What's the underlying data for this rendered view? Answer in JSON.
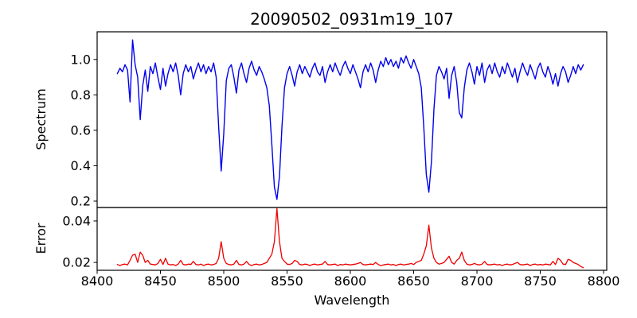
{
  "chart_data": {
    "type": "line",
    "title": "20090502_0931m19_107",
    "xlabel": "Wavelength",
    "xlim": [
      8400,
      8802.5
    ],
    "xticks": [
      "8400",
      "8450",
      "8500",
      "8550",
      "8600",
      "8650",
      "8700",
      "8750",
      "8800"
    ],
    "grid": false,
    "legend": "none",
    "panels": [
      {
        "name": "spectrum",
        "ylabel": "Spectrum",
        "ylim": [
          0.164,
          1.156
        ],
        "yticks": [
          "0.2",
          "0.4",
          "0.6",
          "0.8",
          "1.0"
        ],
        "series": {
          "name": "spectrum",
          "color": "#0000ee"
        }
      },
      {
        "name": "error",
        "ylabel": "Error",
        "ylim": [
          0.0162,
          0.0465
        ],
        "yticks": [
          "0.02",
          "0.04"
        ],
        "series": {
          "name": "error",
          "color": "#ee0000"
        }
      }
    ],
    "x": [
      8416,
      8418,
      8420,
      8422,
      8424,
      8426,
      8428,
      8430,
      8432,
      8434,
      8436,
      8438,
      8440,
      8442,
      8444,
      8446,
      8448,
      8450,
      8452,
      8454,
      8456,
      8458,
      8460,
      8462,
      8464,
      8466,
      8468,
      8470,
      8472,
      8474,
      8476,
      8478,
      8480,
      8482,
      8484,
      8486,
      8488,
      8490,
      8492,
      8494,
      8496,
      8498,
      8500,
      8502,
      8504,
      8506,
      8508,
      8510,
      8512,
      8514,
      8516,
      8518,
      8520,
      8522,
      8524,
      8526,
      8528,
      8530,
      8532,
      8534,
      8536,
      8538,
      8540,
      8542,
      8544,
      8546,
      8548,
      8550,
      8552,
      8554,
      8556,
      8558,
      8560,
      8562,
      8564,
      8566,
      8568,
      8570,
      8572,
      8574,
      8576,
      8578,
      8580,
      8582,
      8584,
      8586,
      8588,
      8590,
      8592,
      8594,
      8596,
      8598,
      8600,
      8602,
      8604,
      8606,
      8608,
      8610,
      8612,
      8614,
      8616,
      8618,
      8620,
      8622,
      8624,
      8626,
      8628,
      8630,
      8632,
      8634,
      8636,
      8638,
      8640,
      8642,
      8644,
      8646,
      8648,
      8650,
      8652,
      8654,
      8656,
      8658,
      8660,
      8662,
      8664,
      8666,
      8668,
      8670,
      8672,
      8674,
      8676,
      8678,
      8680,
      8682,
      8684,
      8686,
      8688,
      8690,
      8692,
      8694,
      8696,
      8698,
      8700,
      8702,
      8704,
      8706,
      8708,
      8710,
      8712,
      8714,
      8716,
      8718,
      8720,
      8722,
      8724,
      8726,
      8728,
      8730,
      8732,
      8734,
      8736,
      8738,
      8740,
      8742,
      8744,
      8746,
      8748,
      8750,
      8752,
      8754,
      8756,
      8758,
      8760,
      8762,
      8764,
      8766,
      8768,
      8770,
      8772,
      8774,
      8776,
      8778,
      8780,
      8782,
      8784
    ],
    "spectrum": [
      0.92,
      0.95,
      0.93,
      0.97,
      0.94,
      0.76,
      1.11,
      0.97,
      0.9,
      0.66,
      0.85,
      0.94,
      0.82,
      0.96,
      0.92,
      0.98,
      0.9,
      0.83,
      0.95,
      0.85,
      0.92,
      0.97,
      0.93,
      0.98,
      0.91,
      0.8,
      0.92,
      0.97,
      0.93,
      0.96,
      0.89,
      0.94,
      0.98,
      0.93,
      0.97,
      0.92,
      0.96,
      0.93,
      0.98,
      0.9,
      0.62,
      0.37,
      0.58,
      0.88,
      0.95,
      0.97,
      0.9,
      0.81,
      0.94,
      0.98,
      0.92,
      0.87,
      0.95,
      0.99,
      0.94,
      0.91,
      0.96,
      0.93,
      0.89,
      0.84,
      0.74,
      0.52,
      0.28,
      0.21,
      0.34,
      0.62,
      0.84,
      0.92,
      0.96,
      0.91,
      0.85,
      0.93,
      0.97,
      0.92,
      0.96,
      0.93,
      0.9,
      0.95,
      0.98,
      0.93,
      0.91,
      0.96,
      0.87,
      0.93,
      0.97,
      0.93,
      0.98,
      0.94,
      0.91,
      0.96,
      0.99,
      0.95,
      0.92,
      0.97,
      0.93,
      0.89,
      0.84,
      0.93,
      0.97,
      0.93,
      0.98,
      0.94,
      0.87,
      0.94,
      0.99,
      0.96,
      1.01,
      0.97,
      1.0,
      0.96,
      0.99,
      0.95,
      1.01,
      0.98,
      1.02,
      0.98,
      0.95,
      1.0,
      0.96,
      0.92,
      0.84,
      0.62,
      0.35,
      0.25,
      0.42,
      0.72,
      0.91,
      0.96,
      0.93,
      0.89,
      0.95,
      0.78,
      0.91,
      0.96,
      0.87,
      0.7,
      0.67,
      0.84,
      0.94,
      0.98,
      0.93,
      0.86,
      0.96,
      0.91,
      0.98,
      0.87,
      0.94,
      0.97,
      0.92,
      0.98,
      0.93,
      0.9,
      0.96,
      0.92,
      0.98,
      0.94,
      0.9,
      0.95,
      0.87,
      0.93,
      0.98,
      0.94,
      0.91,
      0.97,
      0.93,
      0.89,
      0.95,
      0.98,
      0.93,
      0.9,
      0.96,
      0.92,
      0.86,
      0.92,
      0.85,
      0.92,
      0.96,
      0.93,
      0.87,
      0.91,
      0.96,
      0.92,
      0.97,
      0.94,
      0.97
    ],
    "error": [
      0.019,
      0.0185,
      0.019,
      0.0192,
      0.0188,
      0.021,
      0.0235,
      0.024,
      0.02,
      0.025,
      0.0235,
      0.02,
      0.021,
      0.0192,
      0.019,
      0.0188,
      0.0195,
      0.0215,
      0.019,
      0.022,
      0.0192,
      0.0188,
      0.019,
      0.0185,
      0.0192,
      0.021,
      0.019,
      0.0188,
      0.0192,
      0.019,
      0.0205,
      0.019,
      0.0188,
      0.0192,
      0.0185,
      0.019,
      0.0192,
      0.0188,
      0.019,
      0.0195,
      0.022,
      0.03,
      0.022,
      0.0195,
      0.019,
      0.0188,
      0.0192,
      0.021,
      0.019,
      0.0188,
      0.0192,
      0.0205,
      0.019,
      0.0185,
      0.019,
      0.0192,
      0.0188,
      0.019,
      0.0195,
      0.02,
      0.022,
      0.024,
      0.03,
      0.046,
      0.03,
      0.022,
      0.0205,
      0.0192,
      0.019,
      0.0195,
      0.021,
      0.0205,
      0.019,
      0.0188,
      0.0192,
      0.019,
      0.0185,
      0.019,
      0.0192,
      0.0188,
      0.019,
      0.0192,
      0.0205,
      0.019,
      0.0188,
      0.019,
      0.0192,
      0.0185,
      0.019,
      0.0188,
      0.0192,
      0.019,
      0.0188,
      0.019,
      0.0192,
      0.0195,
      0.02,
      0.019,
      0.0188,
      0.019,
      0.0192,
      0.019,
      0.02,
      0.019,
      0.0185,
      0.0188,
      0.019,
      0.0192,
      0.0188,
      0.019,
      0.0185,
      0.019,
      0.0192,
      0.0188,
      0.019,
      0.0192,
      0.0195,
      0.019,
      0.02,
      0.0205,
      0.021,
      0.024,
      0.028,
      0.038,
      0.027,
      0.022,
      0.02,
      0.0192,
      0.0195,
      0.02,
      0.0215,
      0.023,
      0.02,
      0.0192,
      0.021,
      0.022,
      0.025,
      0.021,
      0.0192,
      0.0188,
      0.019,
      0.0195,
      0.019,
      0.0188,
      0.0192,
      0.0205,
      0.019,
      0.0188,
      0.019,
      0.0192,
      0.0188,
      0.019,
      0.0185,
      0.019,
      0.0192,
      0.0188,
      0.019,
      0.0195,
      0.02,
      0.019,
      0.0188,
      0.019,
      0.0192,
      0.0185,
      0.019,
      0.0192,
      0.0188,
      0.019,
      0.0188,
      0.0192,
      0.019,
      0.0188,
      0.0205,
      0.019,
      0.022,
      0.021,
      0.0192,
      0.019,
      0.0215,
      0.021,
      0.02,
      0.0195,
      0.019,
      0.018,
      0.0175
    ]
  }
}
